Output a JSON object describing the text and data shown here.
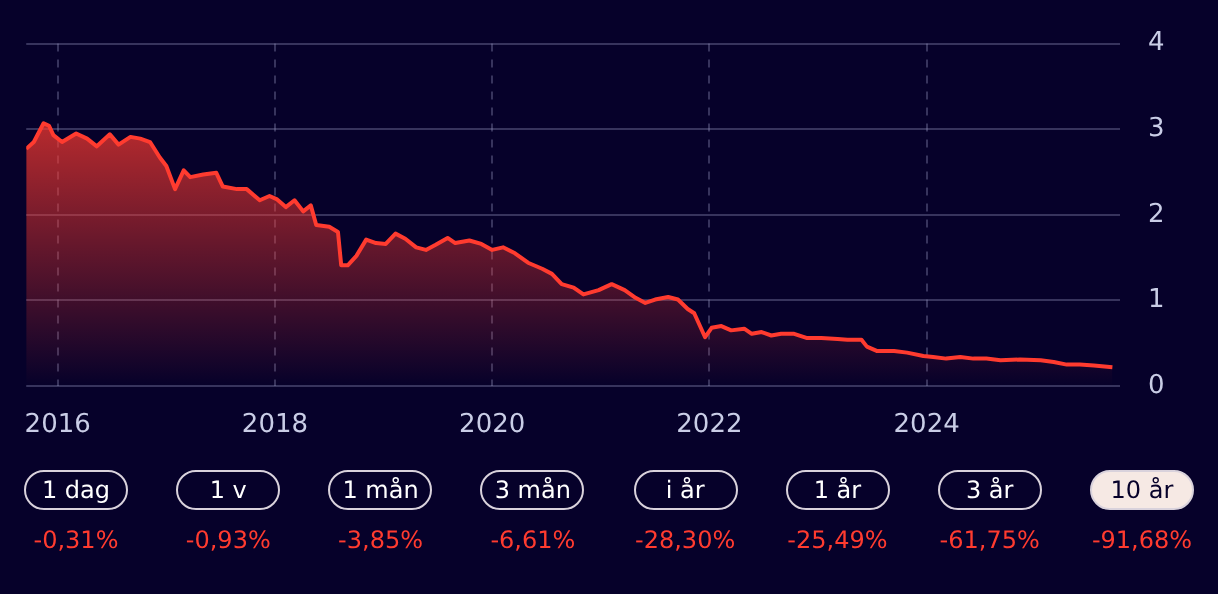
{
  "chart_data": {
    "type": "area",
    "x": [
      2015.71,
      2015.78,
      2015.87,
      2015.92,
      2015.96,
      2016.04,
      2016.17,
      2016.27,
      2016.36,
      2016.48,
      2016.56,
      2016.67,
      2016.76,
      2016.85,
      2016.94,
      2017.0,
      2017.08,
      2017.16,
      2017.22,
      2017.34,
      2017.46,
      2017.52,
      2017.65,
      2017.74,
      2017.86,
      2017.95,
      2018.02,
      2018.1,
      2018.18,
      2018.26,
      2018.33,
      2018.38,
      2018.5,
      2018.58,
      2018.61,
      2018.67,
      2018.75,
      2018.84,
      2018.93,
      2019.02,
      2019.11,
      2019.2,
      2019.3,
      2019.39,
      2019.48,
      2019.59,
      2019.66,
      2019.79,
      2019.9,
      2020.0,
      2020.1,
      2020.21,
      2020.33,
      2020.46,
      2020.55,
      2020.64,
      2020.75,
      2020.84,
      2020.98,
      2021.1,
      2021.22,
      2021.32,
      2021.41,
      2021.5,
      2021.62,
      2021.71,
      2021.8,
      2021.86,
      2021.96,
      2022.02,
      2022.11,
      2022.2,
      2022.32,
      2022.39,
      2022.48,
      2022.57,
      2022.66,
      2022.78,
      2022.9,
      2023.03,
      2023.18,
      2023.27,
      2023.4,
      2023.45,
      2023.54,
      2023.7,
      2023.82,
      2023.97,
      2024.06,
      2024.18,
      2024.31,
      2024.43,
      2024.55,
      2024.68,
      2024.86,
      2025.05,
      2025.17,
      2025.29,
      2025.41,
      2025.54,
      2025.71
    ],
    "series": [
      {
        "color": "#ff3b2f",
        "values": [
          2.77,
          2.85,
          3.07,
          3.04,
          2.93,
          2.85,
          2.95,
          2.89,
          2.8,
          2.94,
          2.82,
          2.91,
          2.89,
          2.85,
          2.67,
          2.57,
          2.3,
          2.52,
          2.44,
          2.47,
          2.49,
          2.33,
          2.3,
          2.3,
          2.17,
          2.22,
          2.18,
          2.09,
          2.17,
          2.04,
          2.11,
          1.88,
          1.86,
          1.8,
          1.41,
          1.41,
          1.52,
          1.71,
          1.67,
          1.66,
          1.78,
          1.72,
          1.62,
          1.59,
          1.65,
          1.73,
          1.67,
          1.7,
          1.66,
          1.59,
          1.62,
          1.55,
          1.44,
          1.37,
          1.31,
          1.19,
          1.15,
          1.07,
          1.12,
          1.19,
          1.12,
          1.03,
          0.97,
          1.01,
          1.04,
          1.01,
          0.9,
          0.85,
          0.57,
          0.68,
          0.7,
          0.65,
          0.67,
          0.61,
          0.63,
          0.59,
          0.61,
          0.61,
          0.56,
          0.56,
          0.55,
          0.54,
          0.54,
          0.46,
          0.41,
          0.41,
          0.39,
          0.35,
          0.34,
          0.32,
          0.34,
          0.32,
          0.32,
          0.3,
          0.31,
          0.3,
          0.28,
          0.25,
          0.25,
          0.24,
          0.22
        ]
      }
    ],
    "xlim": [
      2015.71,
      2025.78
    ],
    "xticks": [
      2016,
      2018,
      2020,
      2022,
      2024
    ],
    "ylim": [
      0,
      4
    ],
    "yticks": [
      0,
      1,
      2,
      3,
      4
    ],
    "grid": true,
    "legend": false,
    "annotations": [
      "1 dag",
      "1 v",
      "1 mån",
      "3 mån",
      "i år",
      "1 år",
      "3 år",
      "10 år",
      "-0,31%",
      "-0,93%",
      "-3,85%",
      "-6,61%",
      "-28,30%",
      "-25,49%",
      "-61,75%",
      "-91,68%"
    ]
  }
}
